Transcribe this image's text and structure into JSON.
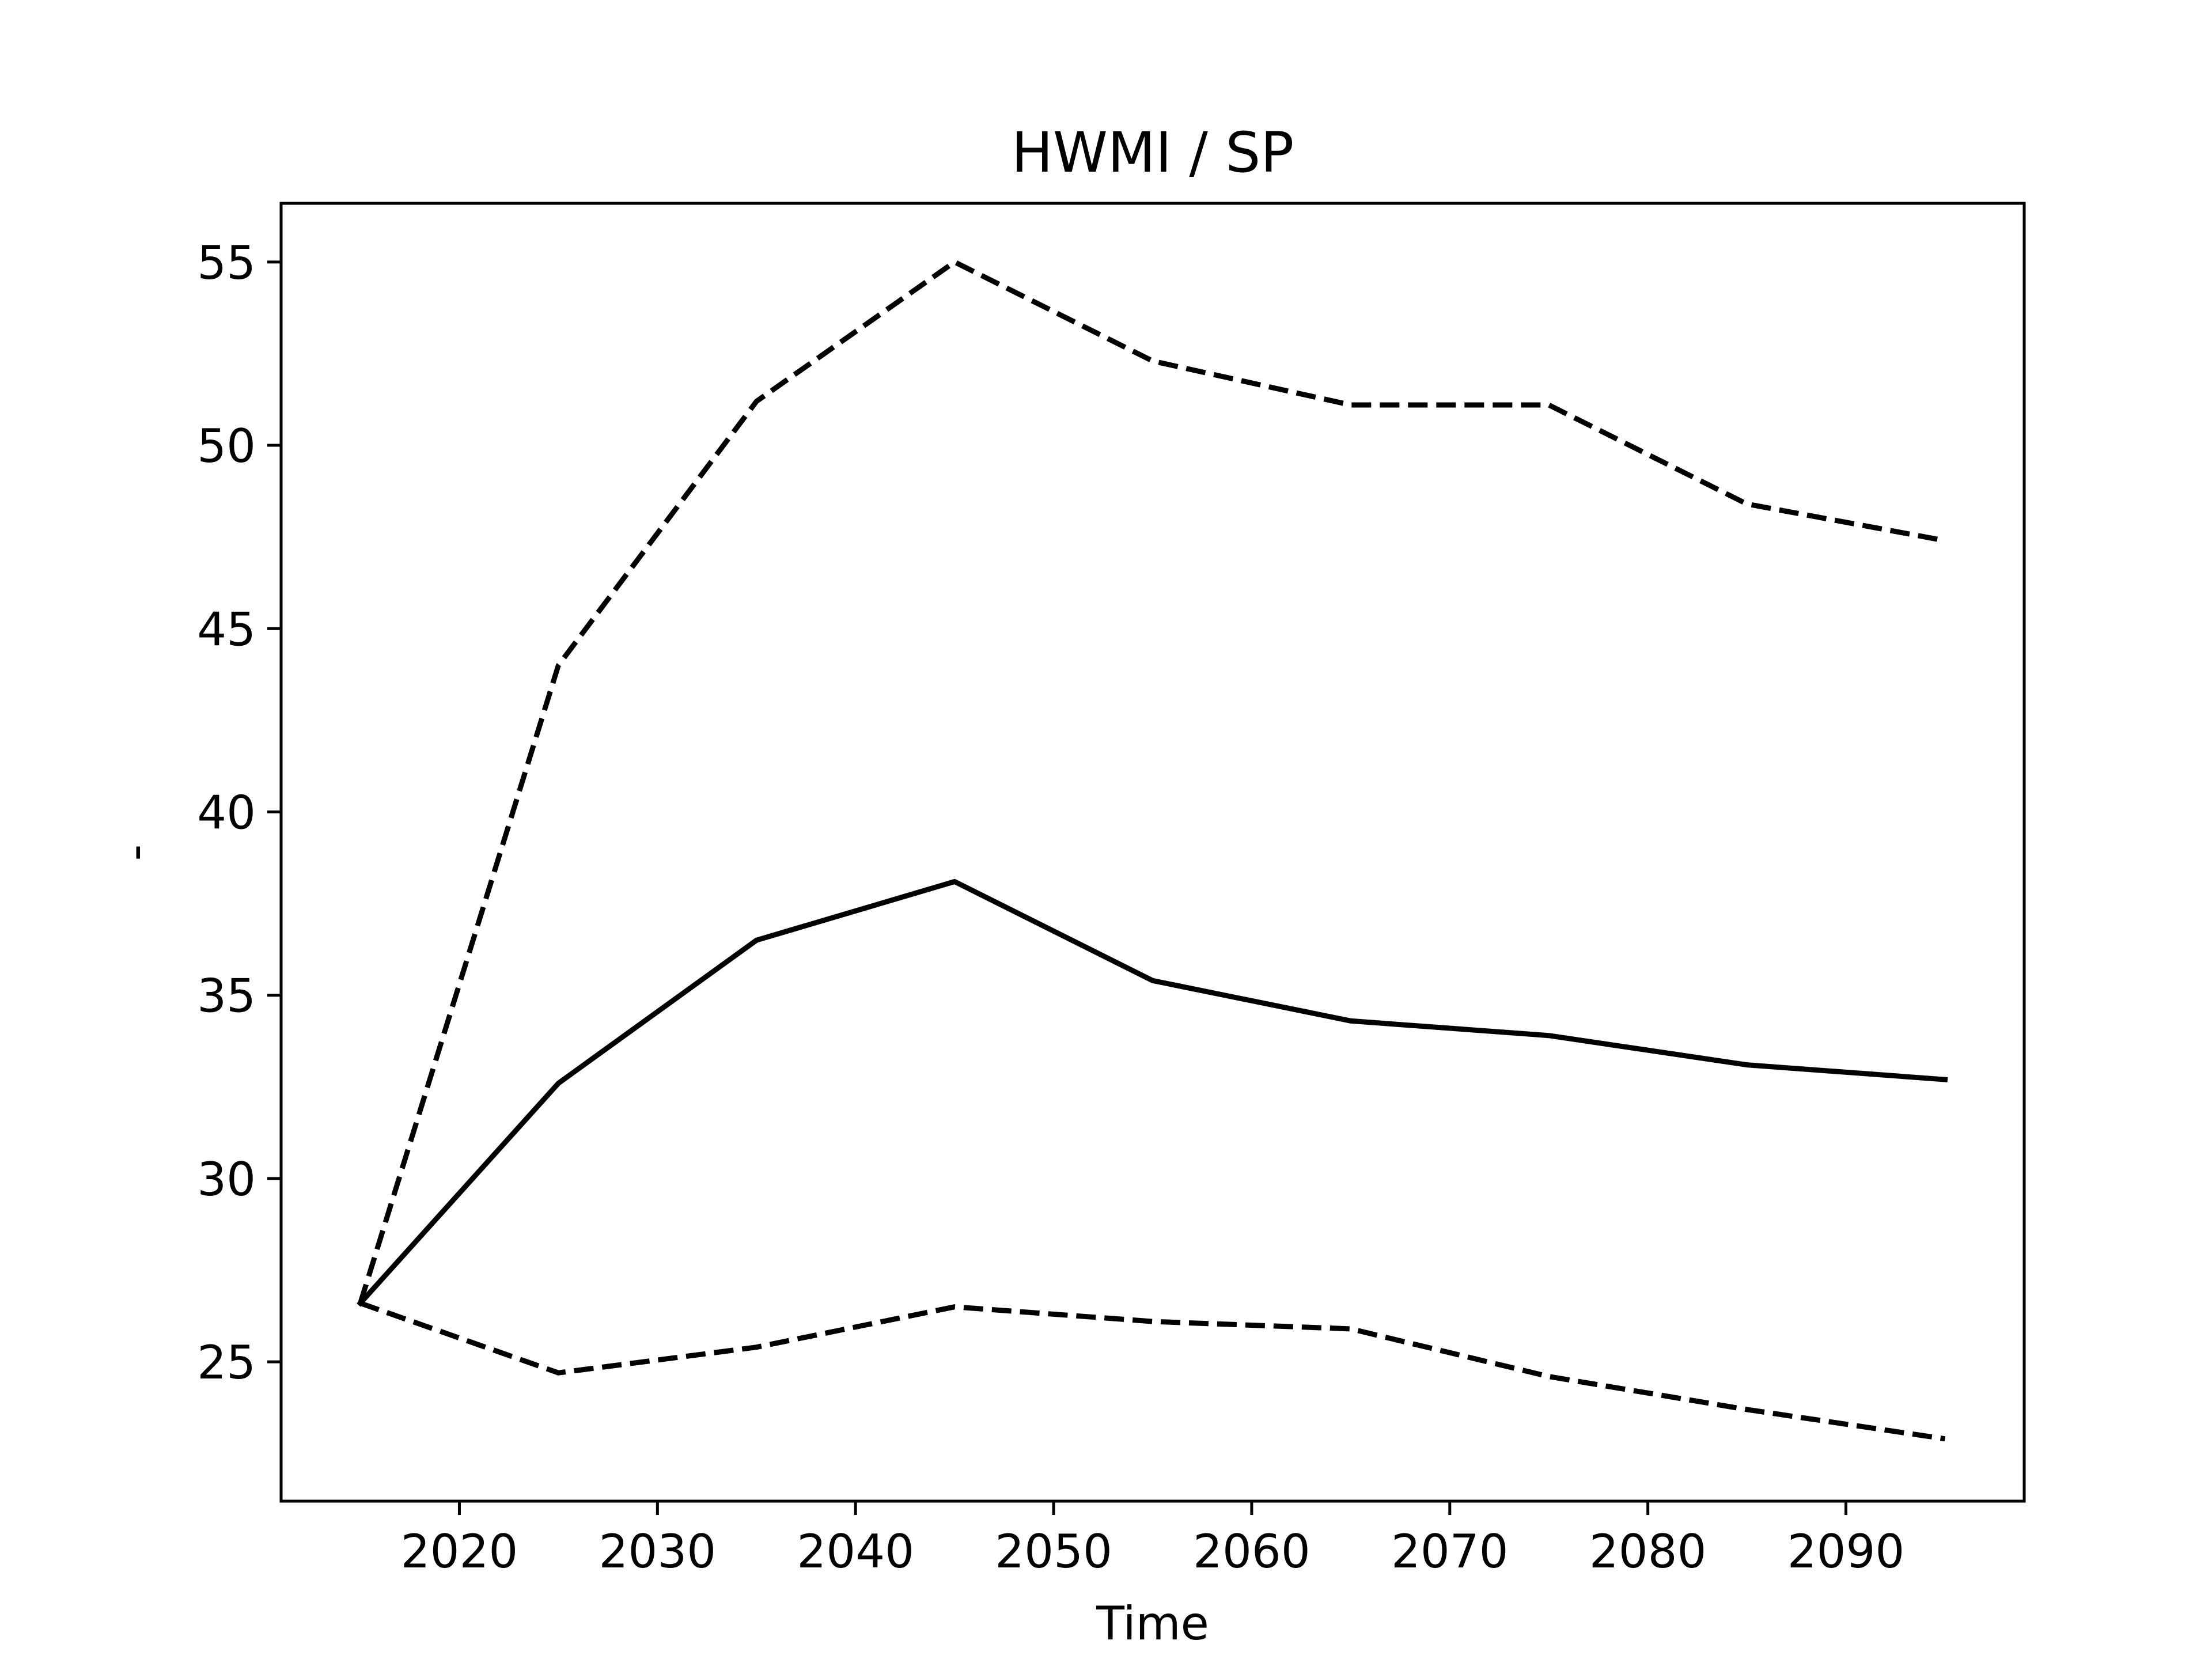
{
  "chart_data": {
    "type": "line",
    "title": "HWMI / SP",
    "xlabel": "Time",
    "ylabel": "-",
    "xlim": [
      2011,
      2099
    ],
    "ylim": [
      21.2,
      56.6
    ],
    "x_ticks": [
      2020,
      2030,
      2040,
      2050,
      2060,
      2070,
      2080,
      2090
    ],
    "y_ticks": [
      25,
      30,
      35,
      40,
      45,
      50,
      55
    ],
    "grid": false,
    "legend": "none",
    "x": [
      2015,
      2025,
      2035,
      2045,
      2055,
      2065,
      2075,
      2085,
      2095
    ],
    "series": [
      {
        "style": "solid",
        "color": "#000000",
        "values": [
          26.6,
          32.6,
          36.5,
          38.1,
          35.4,
          34.3,
          33.9,
          33.1,
          32.7
        ]
      },
      {
        "style": "dashed",
        "color": "#000000",
        "values": [
          26.6,
          44.0,
          51.2,
          55.0,
          52.3,
          51.1,
          51.1,
          48.4,
          47.4
        ]
      },
      {
        "style": "dashed",
        "color": "#000000",
        "values": [
          26.6,
          24.7,
          25.4,
          26.5,
          26.1,
          25.9,
          24.6,
          23.7,
          22.9
        ]
      }
    ]
  }
}
